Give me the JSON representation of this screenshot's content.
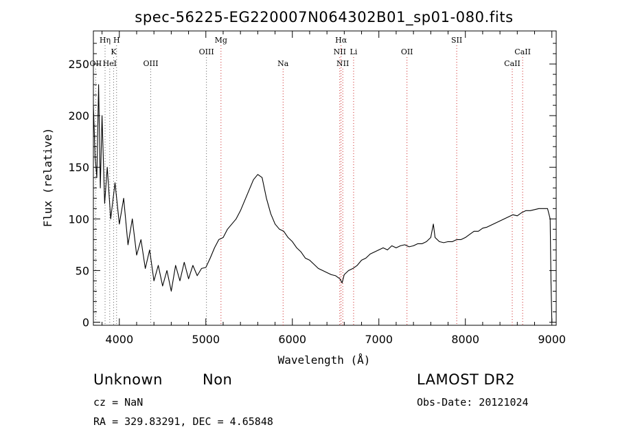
{
  "chart_data": {
    "type": "line",
    "title": "spec-56225-EG220007N064302B01_sp01-080.fits",
    "xlabel": "Wavelength (Å)",
    "ylabel": "Flux (relative)",
    "xlim": [
      3700,
      9050
    ],
    "ylim": [
      -3,
      282
    ],
    "xticks": [
      4000,
      5000,
      6000,
      7000,
      8000,
      9000
    ],
    "yticks": [
      0,
      50,
      100,
      150,
      200,
      250
    ],
    "grid": false,
    "series": [
      {
        "color": "#000000",
        "x": [
          3700,
          3720,
          3740,
          3760,
          3780,
          3800,
          3830,
          3860,
          3900,
          3950,
          4000,
          4050,
          4100,
          4150,
          4200,
          4250,
          4300,
          4350,
          4400,
          4450,
          4500,
          4550,
          4600,
          4650,
          4700,
          4750,
          4800,
          4850,
          4900,
          4950,
          5000,
          5050,
          5100,
          5150,
          5200,
          5250,
          5300,
          5350,
          5400,
          5450,
          5500,
          5550,
          5600,
          5650,
          5700,
          5750,
          5800,
          5850,
          5900,
          5950,
          6000,
          6050,
          6100,
          6150,
          6200,
          6250,
          6300,
          6350,
          6400,
          6450,
          6500,
          6550,
          6575,
          6600,
          6650,
          6700,
          6750,
          6800,
          6850,
          6900,
          6950,
          7000,
          7050,
          7100,
          7150,
          7200,
          7250,
          7300,
          7350,
          7400,
          7450,
          7500,
          7550,
          7600,
          7630,
          7650,
          7700,
          7750,
          7800,
          7850,
          7900,
          7950,
          8000,
          8050,
          8100,
          8150,
          8200,
          8250,
          8300,
          8350,
          8400,
          8450,
          8500,
          8550,
          8600,
          8650,
          8700,
          8750,
          8800,
          8850,
          8900,
          8950,
          8980,
          8990,
          9000
        ],
        "y": [
          210,
          160,
          140,
          230,
          130,
          200,
          115,
          150,
          100,
          135,
          95,
          120,
          75,
          100,
          65,
          80,
          52,
          70,
          40,
          55,
          35,
          50,
          30,
          55,
          40,
          58,
          42,
          55,
          45,
          52,
          53,
          62,
          72,
          80,
          82,
          90,
          95,
          100,
          108,
          118,
          128,
          138,
          143,
          140,
          120,
          105,
          95,
          90,
          88,
          82,
          78,
          72,
          68,
          62,
          60,
          56,
          52,
          50,
          48,
          46,
          45,
          42,
          38,
          46,
          50,
          52,
          55,
          60,
          62,
          66,
          68,
          70,
          72,
          70,
          74,
          72,
          74,
          75,
          73,
          74,
          76,
          76,
          78,
          82,
          95,
          82,
          78,
          77,
          78,
          78,
          80,
          80,
          82,
          85,
          88,
          88,
          91,
          92,
          94,
          96,
          98,
          100,
          102,
          104,
          103,
          106,
          108,
          108,
          109,
          110,
          110,
          110,
          100,
          40,
          0
        ]
      }
    ],
    "line_markers": [
      {
        "label": "OII",
        "wavelength": 3727,
        "row": 3
      },
      {
        "label": "Hη",
        "wavelength": 3835,
        "row": 1
      },
      {
        "label": "H",
        "wavelength": 3968,
        "row": 1
      },
      {
        "label": "K",
        "wavelength": 3934,
        "row": 2
      },
      {
        "label": "HeI",
        "wavelength": 3889,
        "row": 3
      },
      {
        "label": "OIII",
        "wavelength": 4363,
        "row": 3
      },
      {
        "label": "OIII",
        "wavelength": 5007,
        "row": 2
      },
      {
        "label": "Mg",
        "wavelength": 5175,
        "row": 1
      },
      {
        "label": "Na",
        "wavelength": 5893,
        "row": 3
      },
      {
        "label": "Hα",
        "wavelength": 6563,
        "row": 1
      },
      {
        "label": "NII",
        "wavelength": 6548,
        "row": 2
      },
      {
        "label": "NII",
        "wavelength": 6583,
        "row": 3
      },
      {
        "label": "Li",
        "wavelength": 6708,
        "row": 2
      },
      {
        "label": "OII",
        "wavelength": 7325,
        "row": 2
      },
      {
        "label": "SII",
        "wavelength": 7900,
        "row": 1
      },
      {
        "label": "CaII",
        "wavelength": 8542,
        "row": 3
      },
      {
        "label": "CaII",
        "wavelength": 8662,
        "row": 2
      }
    ],
    "marker_colors": {
      "blue_side": "#606060",
      "red_side": "#cc2222"
    }
  },
  "info": {
    "class_text": "Unknown",
    "subclass_text": "Non",
    "survey": "LAMOST DR2",
    "cz": "cz = NaN",
    "obs_date": "Obs-Date: 20121024",
    "radec": "RA = 329.83291, DEC =   4.65848"
  }
}
